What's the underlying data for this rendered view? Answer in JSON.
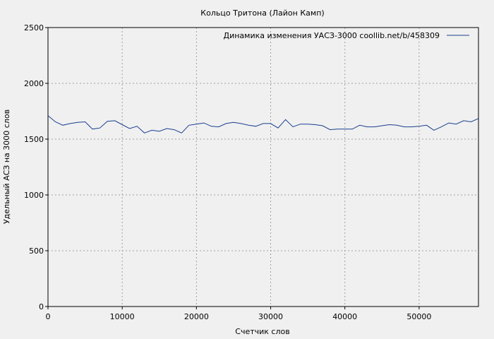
{
  "chart_data": {
    "type": "line",
    "title": "Кольцо Тритона (Лайон Камп)",
    "xlabel": "Счетчик слов",
    "ylabel": "Удельный АСЗ на 3000 слов",
    "xlim": [
      0,
      58000
    ],
    "ylim": [
      0,
      2500
    ],
    "x_ticks": [
      0,
      10000,
      20000,
      30000,
      40000,
      50000
    ],
    "y_ticks": [
      0,
      500,
      1000,
      1500,
      2000,
      2500
    ],
    "grid": true,
    "legend_position": "top-right",
    "series": [
      {
        "name": "Динамика изменения УАСЗ-3000  coollib.net/b/458309",
        "color": "#1a3f8f",
        "x": [
          0,
          1000,
          2000,
          3000,
          4000,
          5000,
          6000,
          7000,
          8000,
          9000,
          10000,
          11000,
          12000,
          13000,
          14000,
          15000,
          16000,
          17000,
          18000,
          19000,
          20000,
          21000,
          22000,
          23000,
          24000,
          25000,
          26000,
          27000,
          28000,
          29000,
          30000,
          31000,
          32000,
          33000,
          34000,
          35000,
          36000,
          37000,
          38000,
          39000,
          40000,
          41000,
          42000,
          43000,
          44000,
          45000,
          46000,
          47000,
          48000,
          49000,
          50000,
          51000,
          52000,
          53000,
          54000,
          55000,
          56000,
          57000,
          58000
        ],
        "y": [
          1710,
          1655,
          1625,
          1640,
          1650,
          1655,
          1590,
          1600,
          1660,
          1665,
          1630,
          1595,
          1615,
          1555,
          1580,
          1570,
          1595,
          1585,
          1555,
          1625,
          1635,
          1645,
          1615,
          1610,
          1640,
          1650,
          1640,
          1625,
          1615,
          1640,
          1640,
          1600,
          1675,
          1610,
          1635,
          1635,
          1630,
          1620,
          1585,
          1590,
          1590,
          1590,
          1625,
          1610,
          1610,
          1620,
          1630,
          1625,
          1610,
          1610,
          1615,
          1625,
          1580,
          1610,
          1645,
          1635,
          1665,
          1655,
          1685
        ]
      }
    ]
  }
}
